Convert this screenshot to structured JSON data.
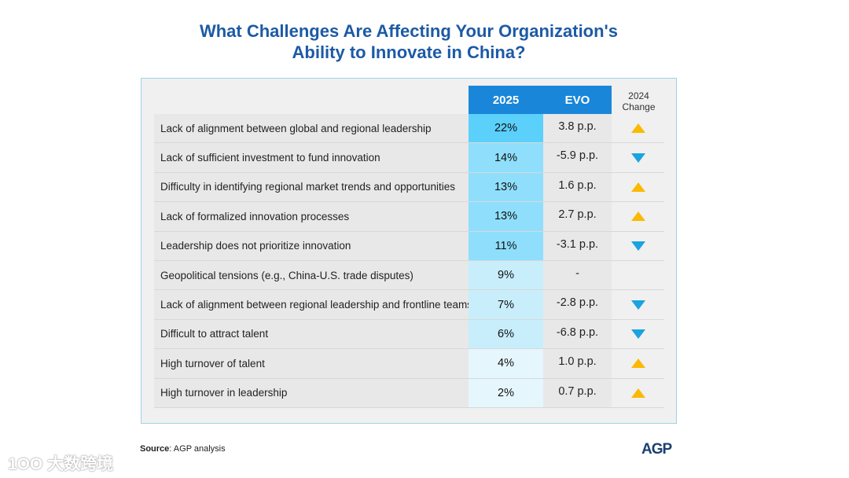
{
  "chart_data": {
    "type": "table",
    "title": "What Challenges Are Affecting Your Organization's Ability to Innovate in China?",
    "title_lines": [
      "What Challenges Are Affecting Your Organization's",
      "Ability to Innovate in China?"
    ],
    "columns": {
      "value": "2025",
      "evo": "EVO",
      "change_line1": "2024",
      "change_line2": "Change"
    },
    "rows": [
      {
        "label": "Lack of alignment between global and regional leadership",
        "value": "22%",
        "evo": "3.8 p.p.",
        "dir": "up",
        "shade": "#5bd0fb"
      },
      {
        "label": "Lack of sufficient investment to fund innovation",
        "value": "14%",
        "evo": "-5.9 p.p.",
        "dir": "down",
        "shade": "#8fdffc"
      },
      {
        "label": "Difficulty in identifying regional market trends and opportunities",
        "value": "13%",
        "evo": "1.6 p.p.",
        "dir": "up",
        "shade": "#8fdffc"
      },
      {
        "label": "Lack of formalized innovation processes",
        "value": "13%",
        "evo": "2.7 p.p.",
        "dir": "up",
        "shade": "#8fdffc"
      },
      {
        "label": "Leadership does not prioritize innovation",
        "value": "11%",
        "evo": "-3.1 p.p.",
        "dir": "down",
        "shade": "#8fdffc"
      },
      {
        "label": "Geopolitical tensions (e.g., China-U.S. trade disputes)",
        "value": "9%",
        "evo": "-",
        "dir": "none",
        "shade": "#c8eefc"
      },
      {
        "label": "Lack of alignment between regional leadership and frontline teams",
        "value": "7%",
        "evo": "-2.8 p.p.",
        "dir": "down",
        "shade": "#c8eefc"
      },
      {
        "label": "Difficult to attract talent",
        "value": "6%",
        "evo": "-6.8 p.p.",
        "dir": "down",
        "shade": "#c8eefc"
      },
      {
        "label": "High turnover of talent",
        "value": "4%",
        "evo": "1.0 p.p.",
        "dir": "up",
        "shade": "#e6f6fd"
      },
      {
        "label": "High turnover in leadership",
        "value": "2%",
        "evo": "0.7 p.p.",
        "dir": "up",
        "shade": "#e6f6fd"
      }
    ]
  },
  "source": {
    "label": "Source",
    "text": ": AGP analysis"
  },
  "logo": "AGP",
  "watermark": "1OO 大数跨境"
}
